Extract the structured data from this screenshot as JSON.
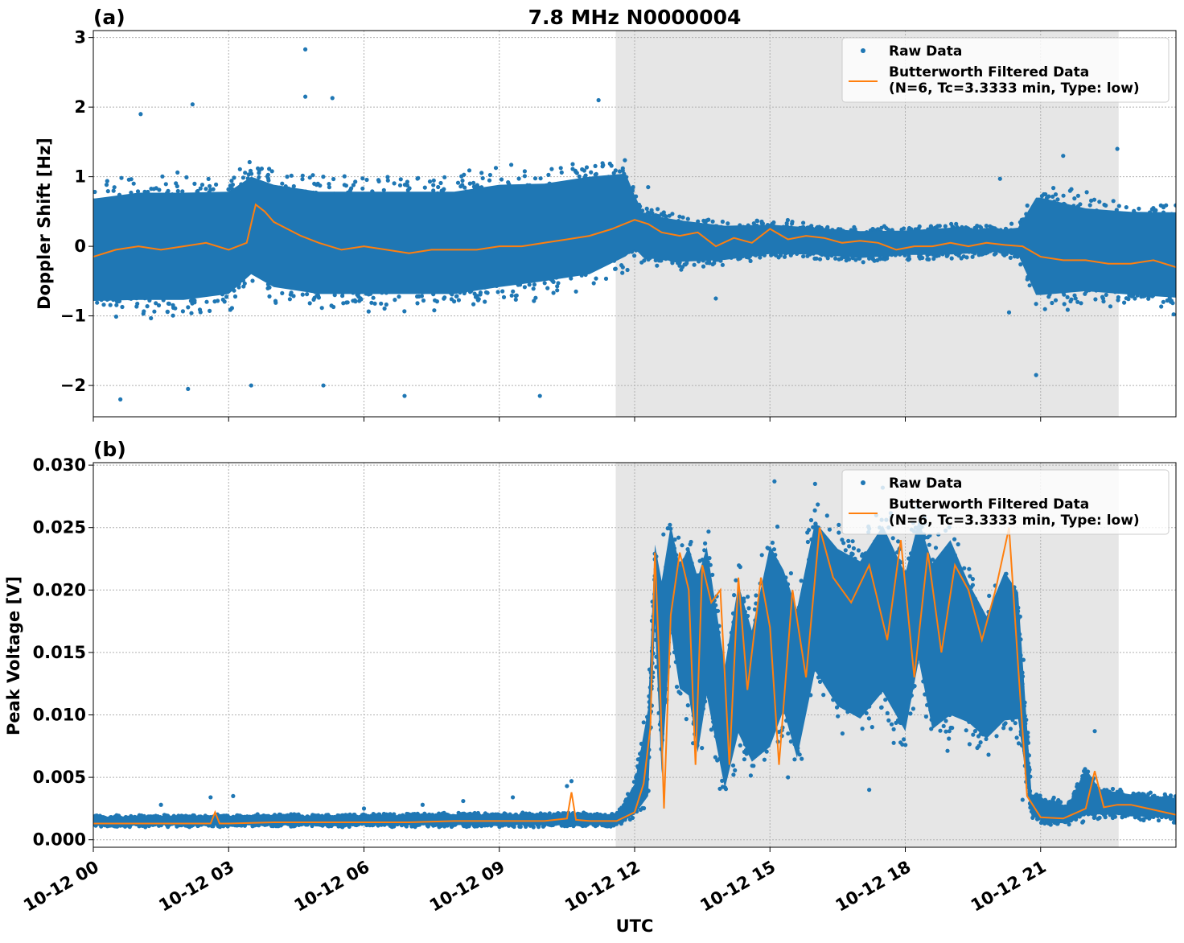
{
  "figure": {
    "title": "7.8 MHz N0000004",
    "xlabel": "UTC",
    "x_tick_labels": [
      "10-12 00",
      "10-12 03",
      "10-12 06",
      "10-12 09",
      "10-12 12",
      "10-12 15",
      "10-12 18",
      "10-12 21"
    ],
    "colors": {
      "raw": "#1f77b4",
      "filtered": "#ff7f0e",
      "shade": "#e6e6e6",
      "grid": "#b0b0b0"
    }
  },
  "legend": {
    "raw": "Raw Data",
    "filtered_line1": "Butterworth Filtered Data",
    "filtered_line2": "(N=6, Tc=3.3333 min, Type: low)"
  },
  "chart_data": [
    {
      "type": "scatter",
      "panel_label": "(a)",
      "ylabel": "Doppler Shift [Hz]",
      "x_unit": "hours UTC",
      "xlim": [
        0,
        24
      ],
      "ylim": [
        -2.45,
        3.1
      ],
      "yticks": [
        -2,
        -1,
        0,
        1,
        2,
        3
      ],
      "ytick_labels": [
        "−2",
        "−1",
        "0",
        "1",
        "2",
        "3"
      ],
      "shaded_interval": [
        11.58,
        22.73
      ],
      "series": [
        {
          "name": "Raw Data",
          "style": "points",
          "envelope": {
            "x": [
              0,
              1,
              2,
              3,
              3.5,
              4,
              5,
              6,
              7,
              8,
              9,
              10,
              11,
              11.8,
              12,
              12.2,
              13,
              14,
              15,
              16,
              17,
              18,
              19,
              20,
              20.5,
              20.9,
              21,
              22,
              23,
              24
            ],
            "low": [
              -1.1,
              -1.1,
              -1.1,
              -1.0,
              -0.7,
              -0.9,
              -1.0,
              -1.0,
              -1.0,
              -1.0,
              -0.9,
              -0.8,
              -0.7,
              -0.4,
              -0.2,
              -0.3,
              -0.35,
              -0.3,
              -0.2,
              -0.2,
              -0.25,
              -0.2,
              -0.2,
              -0.15,
              -0.2,
              -1.0,
              -1.0,
              -0.9,
              -0.95,
              -1.0
            ],
            "high": [
              1.0,
              1.1,
              1.1,
              1.1,
              1.3,
              1.2,
              1.1,
              1.1,
              1.1,
              1.1,
              1.2,
              1.2,
              1.3,
              1.3,
              0.9,
              0.6,
              0.5,
              0.4,
              0.4,
              0.35,
              0.3,
              0.3,
              0.35,
              0.3,
              0.35,
              1.0,
              1.0,
              0.8,
              0.75,
              0.75
            ]
          },
          "outliers": [
            [
              0.6,
              -2.2
            ],
            [
              2.1,
              -2.05
            ],
            [
              4.7,
              2.83
            ],
            [
              4.7,
              2.15
            ],
            [
              2.2,
              2.04
            ],
            [
              5.3,
              2.13
            ],
            [
              1.05,
              1.9
            ],
            [
              6.9,
              -2.15
            ],
            [
              9.9,
              -2.15
            ],
            [
              11.2,
              2.1
            ],
            [
              20.9,
              -1.85
            ],
            [
              3.5,
              -2.0
            ],
            [
              5.1,
              -2.0
            ],
            [
              22.7,
              1.4
            ],
            [
              21.5,
              1.3
            ],
            [
              20.3,
              -0.95
            ],
            [
              20.1,
              0.97
            ],
            [
              13.8,
              -0.75
            ],
            [
              12.3,
              0.85
            ]
          ]
        },
        {
          "name": "Butterworth Filtered Data (N=6, Tc=3.3333 min, Type: low)",
          "style": "line",
          "x": [
            0,
            0.5,
            1,
            1.5,
            2,
            2.5,
            3,
            3.4,
            3.6,
            3.8,
            4,
            4.3,
            4.6,
            5,
            5.5,
            6,
            6.5,
            7,
            7.5,
            8,
            8.5,
            9,
            9.5,
            10,
            10.5,
            11,
            11.5,
            12,
            12.3,
            12.6,
            13,
            13.4,
            13.8,
            14.2,
            14.6,
            15,
            15.4,
            15.8,
            16.2,
            16.6,
            17,
            17.4,
            17.8,
            18.2,
            18.6,
            19,
            19.4,
            19.8,
            20.2,
            20.6,
            21,
            21.5,
            22,
            22.5,
            23,
            23.5,
            24
          ],
          "y": [
            -0.15,
            -0.05,
            0.0,
            -0.05,
            0.0,
            0.05,
            -0.05,
            0.05,
            0.6,
            0.5,
            0.35,
            0.25,
            0.15,
            0.05,
            -0.05,
            0.0,
            -0.05,
            -0.1,
            -0.05,
            -0.05,
            -0.05,
            0.0,
            0.0,
            0.05,
            0.1,
            0.15,
            0.25,
            0.38,
            0.32,
            0.2,
            0.15,
            0.2,
            0.0,
            0.12,
            0.05,
            0.25,
            0.1,
            0.15,
            0.12,
            0.05,
            0.08,
            0.05,
            -0.05,
            0.0,
            0.0,
            0.05,
            0.0,
            0.05,
            0.02,
            0.0,
            -0.15,
            -0.2,
            -0.2,
            -0.25,
            -0.25,
            -0.2,
            -0.3
          ]
        }
      ]
    },
    {
      "type": "scatter",
      "panel_label": "(b)",
      "ylabel": "Peak Voltage [V]",
      "x_unit": "hours UTC",
      "xlim": [
        0,
        24
      ],
      "ylim": [
        -0.0006,
        0.0302
      ],
      "yticks": [
        0.0,
        0.005,
        0.01,
        0.015,
        0.02,
        0.025,
        0.03
      ],
      "ytick_labels": [
        "0.000",
        "0.005",
        "0.010",
        "0.015",
        "0.020",
        "0.025",
        "0.030"
      ],
      "shaded_interval": [
        11.58,
        22.73
      ],
      "series": [
        {
          "name": "Raw Data",
          "style": "points",
          "envelope": {
            "x": [
              0,
              2,
              4,
              6,
              8,
              10,
              11.6,
              12.0,
              12.3,
              12.45,
              12.6,
              12.8,
              13.0,
              13.2,
              13.4,
              13.6,
              14.0,
              14.3,
              14.6,
              15.0,
              15.3,
              15.6,
              16.0,
              16.5,
              17.0,
              17.5,
              18.0,
              18.3,
              18.6,
              19.0,
              19.4,
              19.8,
              20.2,
              20.5,
              20.8,
              21.2,
              21.6,
              22.0,
              22.3,
              22.7,
              23.0,
              23.5,
              24
            ],
            "low": [
              0.001,
              0.001,
              0.001,
              0.001,
              0.001,
              0.001,
              0.001,
              0.0015,
              0.002,
              0.016,
              0.002,
              0.015,
              0.01,
              0.009,
              0.004,
              0.009,
              0.002,
              0.006,
              0.004,
              0.004,
              0.008,
              0.004,
              0.011,
              0.008,
              0.007,
              0.009,
              0.006,
              0.012,
              0.006,
              0.007,
              0.007,
              0.006,
              0.007,
              0.0075,
              0.0015,
              0.001,
              0.001,
              0.0012,
              0.0016,
              0.0016,
              0.0015,
              0.0015,
              0.0013
            ],
            "high": [
              0.002,
              0.002,
              0.0021,
              0.0021,
              0.0022,
              0.0022,
              0.0022,
              0.005,
              0.012,
              0.025,
              0.024,
              0.027,
              0.024,
              0.026,
              0.024,
              0.026,
              0.016,
              0.023,
              0.019,
              0.027,
              0.024,
              0.021,
              0.028,
              0.026,
              0.025,
              0.028,
              0.024,
              0.028,
              0.025,
              0.027,
              0.023,
              0.02,
              0.024,
              0.022,
              0.004,
              0.0035,
              0.003,
              0.0065,
              0.0045,
              0.0042,
              0.004,
              0.0038,
              0.0037
            ]
          },
          "outliers": [
            [
              1.5,
              0.0028
            ],
            [
              2.6,
              0.0034
            ],
            [
              3.1,
              0.0035
            ],
            [
              6.0,
              0.0025
            ],
            [
              7.3,
              0.0028
            ],
            [
              8.2,
              0.0031
            ],
            [
              9.3,
              0.0034
            ],
            [
              10.5,
              0.0043
            ],
            [
              10.6,
              0.0047
            ],
            [
              12.2,
              0.0094
            ],
            [
              15.1,
              0.0287
            ],
            [
              16.0,
              0.0285
            ],
            [
              17.5,
              0.0282
            ],
            [
              17.9,
              0.0285
            ],
            [
              18.5,
              0.0287
            ],
            [
              20.6,
              0.0032
            ],
            [
              22.2,
              0.0087
            ],
            [
              15.4,
              0.005
            ],
            [
              17.2,
              0.004
            ]
          ]
        },
        {
          "name": "Butterworth Filtered Data (N=6, Tc=3.3333 min, Type: low)",
          "style": "line",
          "x": [
            0,
            1,
            2,
            2.6,
            2.7,
            2.8,
            3,
            4,
            5,
            6,
            7,
            8,
            9,
            10,
            10.5,
            10.6,
            10.7,
            11,
            11.6,
            12.0,
            12.2,
            12.35,
            12.45,
            12.55,
            12.65,
            12.8,
            13.0,
            13.2,
            13.35,
            13.5,
            13.7,
            13.9,
            14.1,
            14.3,
            14.5,
            14.8,
            15.0,
            15.2,
            15.5,
            15.8,
            16.1,
            16.4,
            16.8,
            17.2,
            17.6,
            17.9,
            18.2,
            18.5,
            18.8,
            19.1,
            19.4,
            19.7,
            20.0,
            20.3,
            20.5,
            20.7,
            21.0,
            21.5,
            22.0,
            22.2,
            22.4,
            22.7,
            23.0,
            23.5,
            24
          ],
          "y": [
            0.0013,
            0.0013,
            0.0013,
            0.0013,
            0.0022,
            0.0013,
            0.0013,
            0.0014,
            0.0014,
            0.0014,
            0.0014,
            0.0015,
            0.0015,
            0.0015,
            0.0017,
            0.0038,
            0.0016,
            0.0015,
            0.0015,
            0.0022,
            0.0045,
            0.009,
            0.023,
            0.014,
            0.0025,
            0.018,
            0.023,
            0.02,
            0.006,
            0.022,
            0.019,
            0.02,
            0.006,
            0.021,
            0.012,
            0.021,
            0.017,
            0.006,
            0.02,
            0.013,
            0.025,
            0.021,
            0.019,
            0.022,
            0.016,
            0.024,
            0.013,
            0.023,
            0.015,
            0.022,
            0.02,
            0.016,
            0.02,
            0.025,
            0.014,
            0.0035,
            0.0018,
            0.0017,
            0.0025,
            0.0055,
            0.0026,
            0.0028,
            0.0028,
            0.0024,
            0.002
          ]
        }
      ]
    }
  ]
}
